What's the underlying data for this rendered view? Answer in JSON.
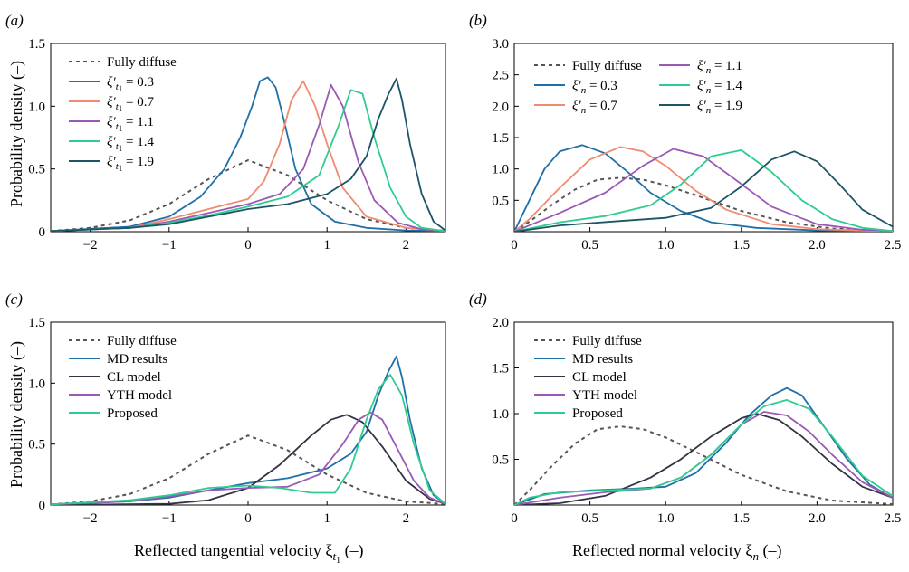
{
  "figure": {
    "ylabel_top": "Probability density (–)",
    "ylabel_bottom": "Probability density (–)",
    "xlabel_left": "Reflected tangential velocity ξ",
    "xlabel_left_sub": "t",
    "xlabel_left_subsub": "1",
    "xlabel_left_unit": " (–)",
    "xlabel_right": "Reflected normal velocity ξ",
    "xlabel_right_sub": "n",
    "xlabel_right_unit": " (–)"
  },
  "chart_data": [
    {
      "panel": "(a)",
      "type": "line",
      "xlim": [
        -2.5,
        2.5
      ],
      "ylim": [
        0,
        1.5
      ],
      "xticks": [
        -2,
        -1,
        0,
        1,
        2
      ],
      "xtick_labels": [
        "−2",
        "−1",
        "0",
        "1",
        "2"
      ],
      "yticks": [
        0,
        0.5,
        1.0,
        1.5
      ],
      "ytick_labels": [
        "0",
        "0.5",
        "1.0",
        "1.5"
      ],
      "grid": false,
      "legend_position": "top-left",
      "series": [
        {
          "name": "Fully diffuse",
          "color": "#555555",
          "dash": true,
          "x": [
            -2.5,
            -2,
            -1.5,
            -1,
            -0.5,
            0,
            0.5,
            1,
            1.5,
            2,
            2.5
          ],
          "y": [
            0.005,
            0.03,
            0.09,
            0.22,
            0.42,
            0.57,
            0.45,
            0.25,
            0.1,
            0.03,
            0.008
          ]
        },
        {
          "name": "ξ′t1 = 0.3",
          "color": "#1f6fa8",
          "x": [
            -2.5,
            -1.5,
            -1,
            -0.6,
            -0.3,
            -0.1,
            0.05,
            0.15,
            0.25,
            0.35,
            0.45,
            0.6,
            0.8,
            1.1,
            1.5,
            2,
            2.5
          ],
          "y": [
            0.005,
            0.04,
            0.12,
            0.28,
            0.5,
            0.75,
            1.0,
            1.2,
            1.23,
            1.15,
            0.9,
            0.5,
            0.22,
            0.08,
            0.03,
            0.01,
            0.005
          ]
        },
        {
          "name": "ξ′t1 = 0.7",
          "color": "#f08a70",
          "x": [
            -2.5,
            -1.5,
            -1,
            -0.5,
            0,
            0.2,
            0.4,
            0.55,
            0.7,
            0.85,
            1.0,
            1.2,
            1.5,
            2,
            2.5
          ],
          "y": [
            0.005,
            0.03,
            0.1,
            0.18,
            0.26,
            0.4,
            0.7,
            1.05,
            1.2,
            1.0,
            0.7,
            0.35,
            0.12,
            0.03,
            0.005
          ]
        },
        {
          "name": "ξ′t1 = 1.1",
          "color": "#9b59b6",
          "x": [
            -2.5,
            -1.5,
            -1,
            -0.5,
            0,
            0.4,
            0.7,
            0.9,
            1.05,
            1.2,
            1.4,
            1.6,
            1.9,
            2.2,
            2.5
          ],
          "y": [
            0.005,
            0.03,
            0.08,
            0.15,
            0.22,
            0.3,
            0.5,
            0.85,
            1.17,
            1.0,
            0.55,
            0.25,
            0.07,
            0.02,
            0.005
          ]
        },
        {
          "name": "ξ′t1 = 1.4",
          "color": "#2ecc8f",
          "x": [
            -2.5,
            -1.5,
            -1,
            -0.5,
            0,
            0.5,
            0.9,
            1.15,
            1.3,
            1.45,
            1.6,
            1.8,
            2.0,
            2.2,
            2.5
          ],
          "y": [
            0.005,
            0.03,
            0.07,
            0.13,
            0.2,
            0.28,
            0.45,
            0.85,
            1.13,
            1.1,
            0.75,
            0.35,
            0.12,
            0.03,
            0.005
          ]
        },
        {
          "name": "ξ′t1 = 1.9",
          "color": "#1d5466",
          "x": [
            -2.5,
            -1.5,
            -1,
            -0.5,
            0,
            0.5,
            1.0,
            1.3,
            1.5,
            1.65,
            1.78,
            1.88,
            1.95,
            2.05,
            2.2,
            2.35,
            2.5
          ],
          "y": [
            0.005,
            0.03,
            0.06,
            0.12,
            0.18,
            0.22,
            0.3,
            0.42,
            0.6,
            0.9,
            1.1,
            1.22,
            1.05,
            0.7,
            0.3,
            0.08,
            0.01
          ]
        }
      ]
    },
    {
      "panel": "(b)",
      "type": "line",
      "xlim": [
        0,
        2.5
      ],
      "ylim": [
        0,
        3.0
      ],
      "xticks": [
        0,
        0.5,
        1.0,
        1.5,
        2.0,
        2.5
      ],
      "xtick_labels": [
        "0",
        "0.5",
        "1.0",
        "1.5",
        "2.0",
        "2.5"
      ],
      "yticks": [
        0.5,
        1.0,
        1.5,
        2.0,
        2.5,
        3.0
      ],
      "ytick_labels": [
        "0.5",
        "1.0",
        "1.5",
        "2.0",
        "2.5",
        "3.0"
      ],
      "grid": false,
      "legend_position": "top",
      "series": [
        {
          "name": "Fully diffuse",
          "color": "#555555",
          "dash": true,
          "x": [
            0,
            0.1,
            0.25,
            0.4,
            0.55,
            0.7,
            0.85,
            1.0,
            1.2,
            1.5,
            1.8,
            2.1,
            2.5
          ],
          "y": [
            0,
            0.16,
            0.43,
            0.67,
            0.83,
            0.86,
            0.83,
            0.74,
            0.58,
            0.33,
            0.15,
            0.05,
            0.01
          ]
        },
        {
          "name": "ξ′n = 0.3",
          "color": "#1f6fa8",
          "x": [
            0,
            0.1,
            0.2,
            0.3,
            0.45,
            0.6,
            0.75,
            0.9,
            1.1,
            1.3,
            1.6,
            2.0,
            2.5
          ],
          "y": [
            0,
            0.5,
            1.0,
            1.28,
            1.38,
            1.25,
            0.95,
            0.62,
            0.33,
            0.15,
            0.06,
            0.02,
            0.005
          ]
        },
        {
          "name": "ξ′n = 0.7",
          "color": "#f08a70",
          "x": [
            0,
            0.1,
            0.3,
            0.5,
            0.7,
            0.85,
            1.0,
            1.2,
            1.4,
            1.7,
            2.0,
            2.5
          ],
          "y": [
            0,
            0.2,
            0.7,
            1.15,
            1.35,
            1.28,
            1.05,
            0.65,
            0.35,
            0.12,
            0.04,
            0.005
          ]
        },
        {
          "name": "ξ′n = 1.1",
          "color": "#9b59b6",
          "x": [
            0,
            0.1,
            0.3,
            0.6,
            0.85,
            1.05,
            1.25,
            1.45,
            1.7,
            2.0,
            2.3,
            2.5
          ],
          "y": [
            0,
            0.1,
            0.3,
            0.62,
            1.05,
            1.32,
            1.2,
            0.85,
            0.4,
            0.12,
            0.03,
            0.01
          ]
        },
        {
          "name": "ξ′n = 1.4",
          "color": "#2ecc8f",
          "x": [
            0,
            0.3,
            0.6,
            0.9,
            1.1,
            1.3,
            1.5,
            1.7,
            1.9,
            2.1,
            2.3,
            2.5
          ],
          "y": [
            0,
            0.15,
            0.25,
            0.42,
            0.75,
            1.2,
            1.3,
            0.95,
            0.5,
            0.2,
            0.06,
            0.01
          ]
        },
        {
          "name": "ξ′n = 1.9",
          "color": "#1d5466",
          "x": [
            0,
            0.3,
            0.7,
            1.0,
            1.3,
            1.5,
            1.7,
            1.85,
            2.0,
            2.15,
            2.3,
            2.5
          ],
          "y": [
            0,
            0.1,
            0.17,
            0.22,
            0.38,
            0.72,
            1.15,
            1.28,
            1.12,
            0.75,
            0.35,
            0.08
          ]
        }
      ]
    },
    {
      "panel": "(c)",
      "type": "line",
      "xlim": [
        -2.5,
        2.5
      ],
      "ylim": [
        0,
        1.5
      ],
      "xticks": [
        -2,
        -1,
        0,
        1,
        2
      ],
      "xtick_labels": [
        "−2",
        "−1",
        "0",
        "1",
        "2"
      ],
      "yticks": [
        0,
        0.5,
        1.0,
        1.5
      ],
      "ytick_labels": [
        "0",
        "0.5",
        "1.0",
        "1.5"
      ],
      "grid": false,
      "legend_position": "top-left",
      "series": [
        {
          "name": "Fully diffuse",
          "color": "#555555",
          "dash": true,
          "x": [
            -2.5,
            -2,
            -1.5,
            -1,
            -0.5,
            0,
            0.5,
            1,
            1.5,
            2,
            2.5
          ],
          "y": [
            0.005,
            0.03,
            0.09,
            0.22,
            0.42,
            0.57,
            0.45,
            0.25,
            0.1,
            0.03,
            0.008
          ]
        },
        {
          "name": "MD results",
          "color": "#1f6fa8",
          "x": [
            -2.5,
            -1.5,
            -1,
            -0.5,
            0,
            0.5,
            1.0,
            1.3,
            1.5,
            1.65,
            1.78,
            1.88,
            1.95,
            2.05,
            2.2,
            2.35,
            2.5
          ],
          "y": [
            0.005,
            0.03,
            0.06,
            0.12,
            0.18,
            0.22,
            0.3,
            0.42,
            0.6,
            0.9,
            1.1,
            1.22,
            1.05,
            0.7,
            0.3,
            0.08,
            0.01
          ]
        },
        {
          "name": "CL model",
          "color": "#333344",
          "x": [
            -2.5,
            -1,
            -0.5,
            0,
            0.4,
            0.8,
            1.05,
            1.25,
            1.45,
            1.7,
            2.0,
            2.3,
            2.5
          ],
          "y": [
            0,
            0.01,
            0.04,
            0.14,
            0.33,
            0.57,
            0.7,
            0.74,
            0.68,
            0.48,
            0.2,
            0.05,
            0.01
          ]
        },
        {
          "name": "YTH model",
          "color": "#9b59b6",
          "x": [
            -2.5,
            -1.5,
            -1,
            -0.5,
            0,
            0.5,
            0.9,
            1.2,
            1.4,
            1.55,
            1.7,
            1.9,
            2.1,
            2.3,
            2.5
          ],
          "y": [
            0.005,
            0.03,
            0.07,
            0.12,
            0.14,
            0.15,
            0.25,
            0.5,
            0.7,
            0.76,
            0.7,
            0.45,
            0.2,
            0.06,
            0.01
          ]
        },
        {
          "name": "Proposed",
          "color": "#2ecc8f",
          "x": [
            -2.5,
            -1.5,
            -1,
            -0.5,
            0,
            0.4,
            0.8,
            1.1,
            1.3,
            1.5,
            1.65,
            1.8,
            1.95,
            2.1,
            2.3,
            2.5
          ],
          "y": [
            0.005,
            0.04,
            0.08,
            0.14,
            0.16,
            0.14,
            0.1,
            0.1,
            0.3,
            0.7,
            0.95,
            1.07,
            0.9,
            0.5,
            0.12,
            0.01
          ]
        }
      ]
    },
    {
      "panel": "(d)",
      "type": "line",
      "xlim": [
        0,
        2.5
      ],
      "ylim": [
        0,
        2.0
      ],
      "xticks": [
        0,
        0.5,
        1.0,
        1.5,
        2.0,
        2.5
      ],
      "xtick_labels": [
        "0",
        "0.5",
        "1.0",
        "1.5",
        "2.0",
        "2.5"
      ],
      "yticks": [
        0.5,
        1.0,
        1.5,
        2.0
      ],
      "ytick_labels": [
        "0.5",
        "1.0",
        "1.5",
        "2.0"
      ],
      "grid": false,
      "legend_position": "top-left",
      "series": [
        {
          "name": "Fully diffuse",
          "color": "#555555",
          "dash": true,
          "x": [
            0,
            0.1,
            0.25,
            0.4,
            0.55,
            0.7,
            0.85,
            1.0,
            1.2,
            1.5,
            1.8,
            2.1,
            2.5
          ],
          "y": [
            0,
            0.16,
            0.43,
            0.67,
            0.83,
            0.86,
            0.83,
            0.74,
            0.58,
            0.33,
            0.15,
            0.05,
            0.01
          ]
        },
        {
          "name": "MD results",
          "color": "#1f6fa8",
          "x": [
            0,
            0.2,
            0.5,
            0.8,
            1.0,
            1.2,
            1.4,
            1.55,
            1.7,
            1.8,
            1.9,
            2.05,
            2.2,
            2.35,
            2.5
          ],
          "y": [
            0,
            0.12,
            0.16,
            0.18,
            0.2,
            0.35,
            0.68,
            0.98,
            1.2,
            1.28,
            1.2,
            0.85,
            0.5,
            0.22,
            0.08
          ]
        },
        {
          "name": "CL model",
          "color": "#333344",
          "x": [
            0,
            0.3,
            0.6,
            0.9,
            1.1,
            1.3,
            1.5,
            1.6,
            1.75,
            1.9,
            2.1,
            2.3,
            2.5
          ],
          "y": [
            0,
            0.02,
            0.1,
            0.3,
            0.5,
            0.75,
            0.95,
            1.0,
            0.93,
            0.75,
            0.45,
            0.2,
            0.08
          ]
        },
        {
          "name": "YTH model",
          "color": "#9b59b6",
          "x": [
            0,
            0.3,
            0.6,
            0.9,
            1.1,
            1.3,
            1.5,
            1.65,
            1.8,
            1.95,
            2.1,
            2.3,
            2.5
          ],
          "y": [
            0,
            0.08,
            0.14,
            0.18,
            0.3,
            0.55,
            0.88,
            1.02,
            0.98,
            0.8,
            0.55,
            0.25,
            0.08
          ]
        },
        {
          "name": "Proposed",
          "color": "#2ecc8f",
          "x": [
            0,
            0.1,
            0.3,
            0.6,
            0.9,
            1.1,
            1.3,
            1.5,
            1.65,
            1.8,
            1.95,
            2.1,
            2.3,
            2.5
          ],
          "y": [
            0,
            0.08,
            0.14,
            0.16,
            0.18,
            0.3,
            0.55,
            0.88,
            1.08,
            1.15,
            1.05,
            0.75,
            0.32,
            0.1
          ]
        }
      ]
    }
  ]
}
